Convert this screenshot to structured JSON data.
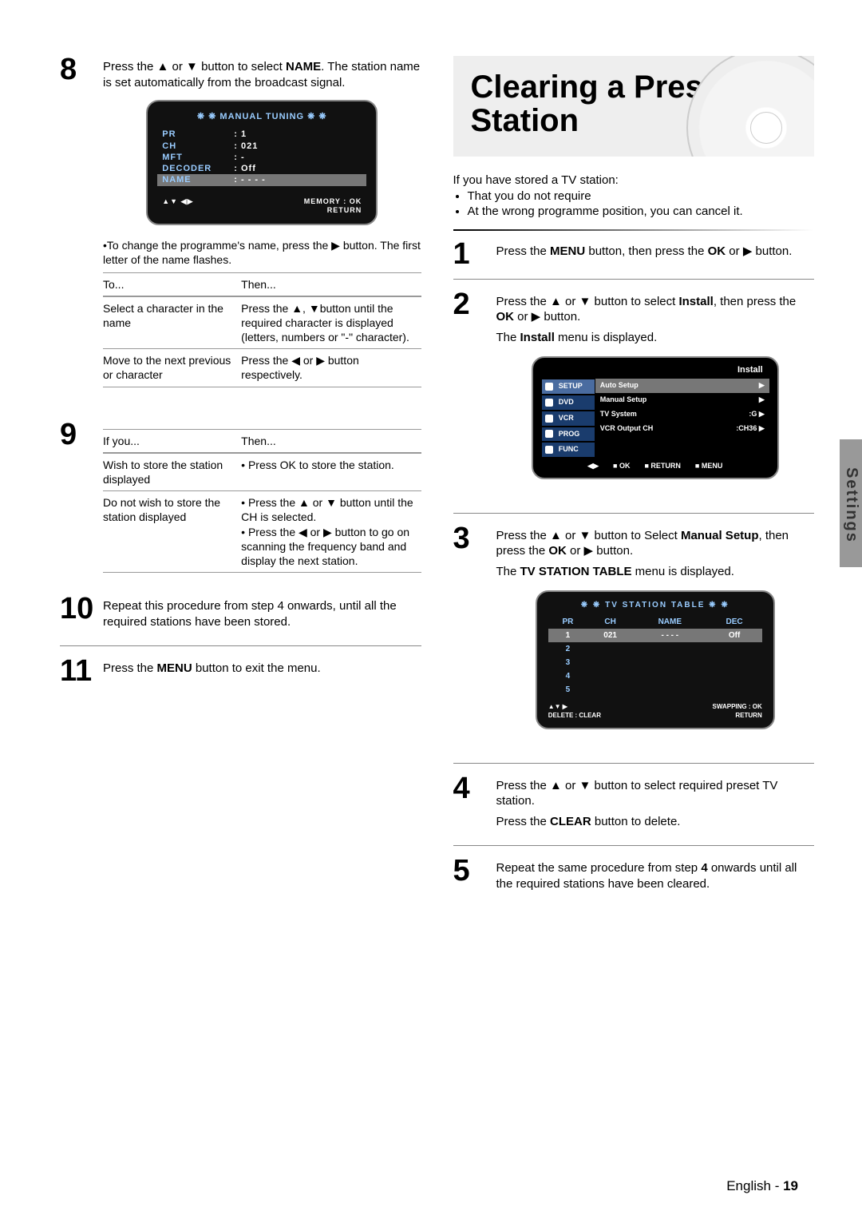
{
  "sideTab": {
    "dark": "Settings",
    "light": ""
  },
  "footer": {
    "lang": "English",
    "page": "19"
  },
  "left": {
    "step8": {
      "num": "8",
      "text_pre": "Press the ",
      "arrows": "▲ or ▼",
      "text_mid": " button to select ",
      "bold": "NAME",
      "text_end": ". The station name is set automatically from the broadcast signal."
    },
    "osd1": {
      "title": "❋ ❋   MANUAL TUNING   ❋ ❋",
      "rows": [
        {
          "k": "PR",
          "v": ":   1"
        },
        {
          "k": "CH",
          "v": ":   021"
        },
        {
          "k": "MFT",
          "v": ":   -"
        },
        {
          "k": "DECODER",
          "v": ":   Off"
        },
        {
          "k": "NAME",
          "v": ":   - - - -",
          "sel": true
        }
      ],
      "foot_left": "▲▼ ◀▶",
      "foot_r1": "MEMORY : OK",
      "foot_r2": "RETURN"
    },
    "note": "•To change the programme's name, press the ▶ button. The first letter of the name flashes.",
    "table1": {
      "h1": "To...",
      "h2": "Then...",
      "rows": [
        {
          "a": "Select a character in the name",
          "b": "Press the ▲, ▼button until the required character is displayed (letters, numbers or \"-\" character)."
        },
        {
          "a": "Move to the next previous or character",
          "b": "Press the ◀ or ▶ button respectively."
        }
      ]
    },
    "step9": {
      "num": "9",
      "h1": "If you...",
      "h2": "Then...",
      "rows": [
        {
          "a": "Wish to store the station displayed",
          "b": "• Press OK to store the station."
        },
        {
          "a": "Do not wish to store the station displayed",
          "b": "• Press the ▲ or ▼ button until the CH is selected.\n• Press the ◀ or ▶ button to go on scanning the frequency band and display the next station."
        }
      ]
    },
    "step10": {
      "num": "10",
      "text": "Repeat this procedure from step 4 onwards, until all the required stations have been stored."
    },
    "step11": {
      "num": "11",
      "pre": "Press the ",
      "bold": "MENU",
      "post": " button to exit the menu."
    }
  },
  "right": {
    "title_l1": "Clearing a Preset",
    "title_l2": "Station",
    "intro_line": "If you have stored a TV station:",
    "intro_items": [
      "That you do not require",
      "At the wrong programme position, you can cancel it."
    ],
    "step1": {
      "num": "1",
      "pre": "Press the ",
      "b1": "MENU",
      "mid": " button, then press the ",
      "b2": "OK",
      "post": " or ▶ button."
    },
    "step2": {
      "num": "2",
      "pre": "Press the ▲ or ▼ button to select ",
      "b1": "Install",
      "mid": ", then press the ",
      "b2": "OK",
      "mid2": " or ▶ button.",
      "line2_pre": "The ",
      "line2_b": "Install",
      "line2_post": " menu is displayed."
    },
    "osd2": {
      "title": "Install",
      "side": [
        {
          "t": "SETUP",
          "sel": true
        },
        {
          "t": "DVD"
        },
        {
          "t": "VCR"
        },
        {
          "t": "PROG"
        },
        {
          "t": "FUNC"
        }
      ],
      "items": [
        {
          "l": "Auto Setup",
          "r": "▶",
          "sel": true
        },
        {
          "l": "Manual Setup",
          "r": "▶"
        },
        {
          "l": "TV System",
          "r": ":G        ▶"
        },
        {
          "l": "VCR Output CH",
          "r": ":CH36   ▶"
        }
      ],
      "foot": [
        "◀▶",
        "■ OK",
        "■ RETURN",
        "■ MENU"
      ]
    },
    "step3": {
      "num": "3",
      "pre": "Press the ▲ or ▼ button to Select ",
      "b1": "Manual Setup",
      "mid": ", then press the ",
      "b2": "OK",
      "post": " or ▶ button.",
      "line2_pre": "The ",
      "line2_b": "TV STATION TABLE",
      "line2_post": " menu is displayed."
    },
    "osd3": {
      "title": "❋ ❋   TV  STATION  TABLE   ❋ ❋",
      "headers": [
        "PR",
        "CH",
        "NAME",
        "DEC"
      ],
      "rows": [
        {
          "c": [
            "1",
            "021",
            "- - - -",
            "Off"
          ],
          "sel": true
        },
        {
          "c": [
            "2",
            "",
            "",
            ""
          ]
        },
        {
          "c": [
            "3",
            "",
            "",
            ""
          ]
        },
        {
          "c": [
            "4",
            "",
            "",
            ""
          ]
        },
        {
          "c": [
            "5",
            "",
            "",
            ""
          ]
        }
      ],
      "foot_l1": "▲▼  ▶",
      "foot_l2": "DELETE : CLEAR",
      "foot_r1": "SWAPPING : OK",
      "foot_r2": "RETURN"
    },
    "step4": {
      "num": "4",
      "l1": "Press the ▲ or ▼ button to select required preset TV station.",
      "l2_pre": "Press the ",
      "l2_b": "CLEAR",
      "l2_post": " button to delete."
    },
    "step5": {
      "num": "5",
      "pre": "Repeat the same procedure from step ",
      "b": "4",
      "post": " onwards until all the required stations have been cleared."
    }
  }
}
